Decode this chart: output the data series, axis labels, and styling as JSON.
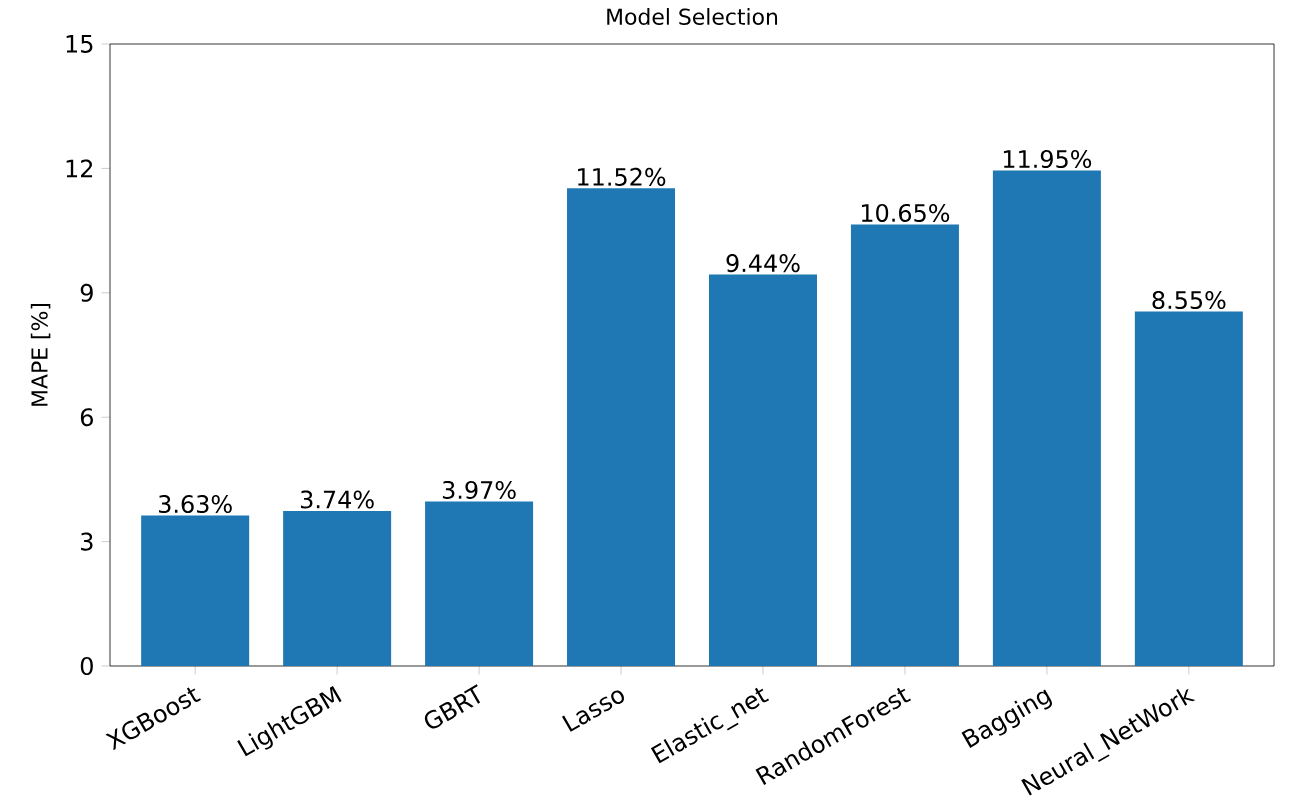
{
  "chart_data": {
    "type": "bar",
    "title": "Model Selection",
    "ylabel": "MAPE [%]",
    "categories": [
      "XGBoost",
      "LightGBM",
      "GBRT",
      "Lasso",
      "Elastic_net",
      "RandomForest",
      "Bagging",
      "Neural_NetWork"
    ],
    "values": [
      3.63,
      3.74,
      3.97,
      11.52,
      9.44,
      10.65,
      11.95,
      8.55
    ],
    "value_labels": [
      "3.63%",
      "3.74%",
      "3.97%",
      "11.52%",
      "9.44%",
      "10.65%",
      "11.95%",
      "8.55%"
    ],
    "color": "#1f77b4",
    "ylim": [
      0,
      15
    ],
    "yticks": [
      0,
      3,
      6,
      9,
      12,
      15
    ],
    "grid": false
  }
}
